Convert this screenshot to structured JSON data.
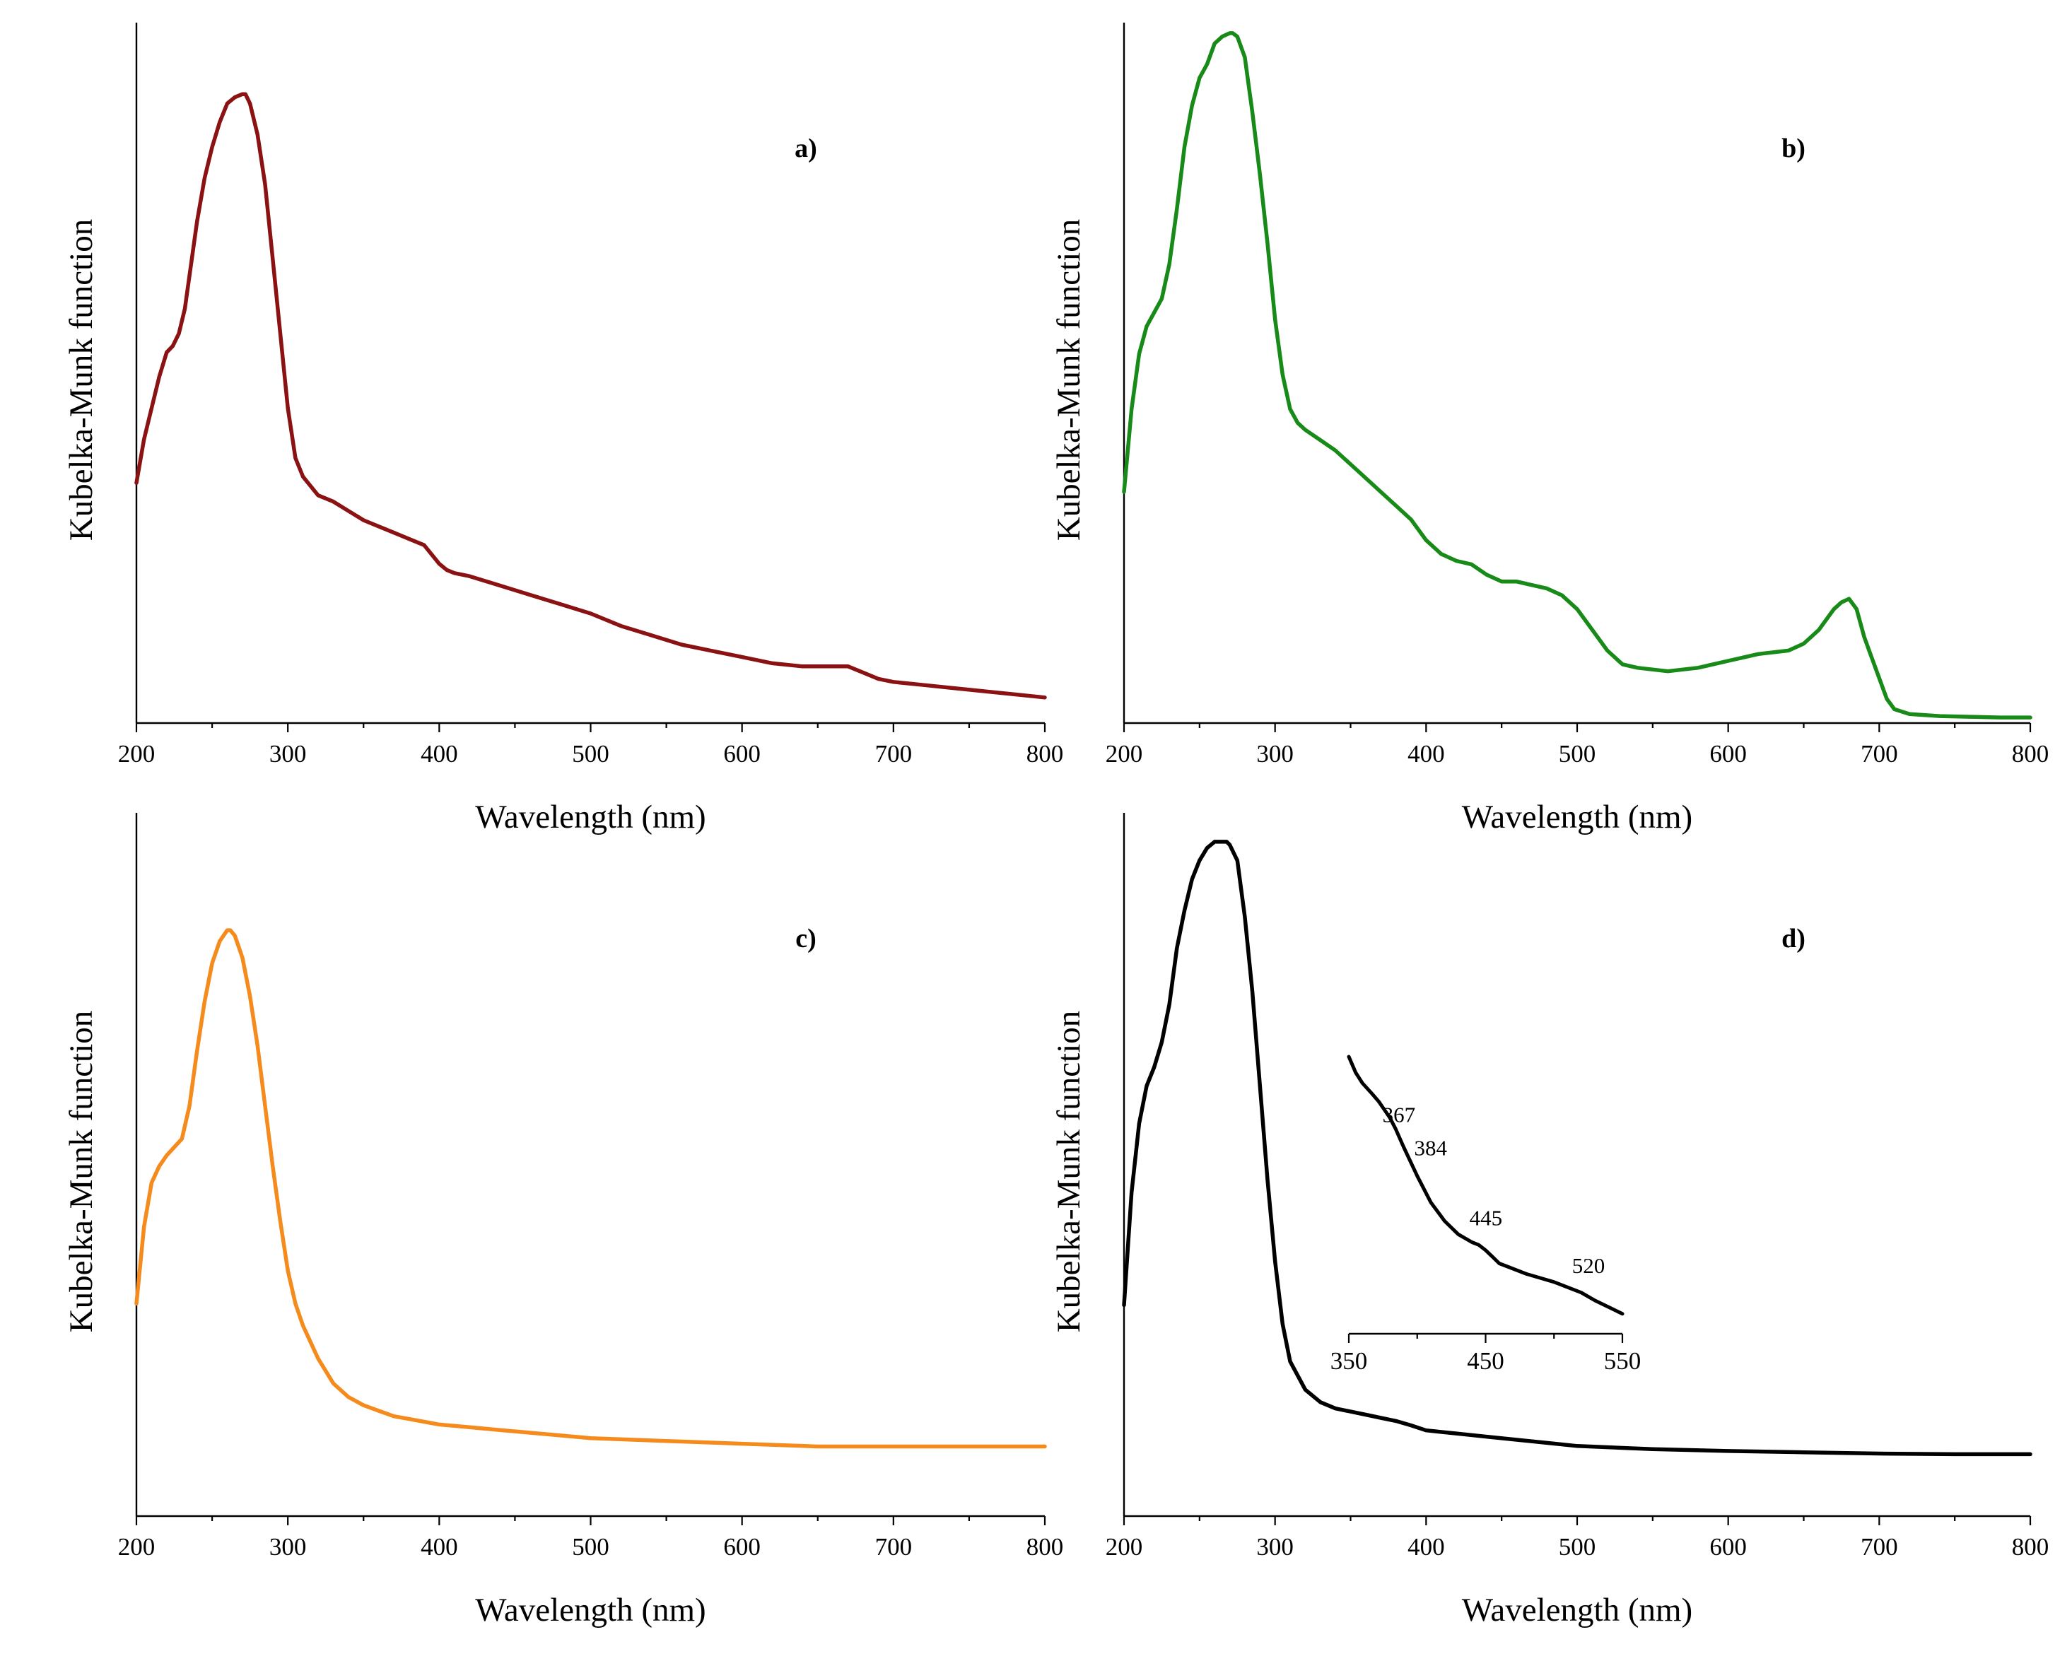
{
  "chart_data": [
    {
      "type": "line",
      "panel_label": "a)",
      "xlabel": "Wavelength (nm)",
      "ylabel": "Kubelka-Munk function",
      "xlim": [
        200,
        800
      ],
      "ylim": [
        0,
        1
      ],
      "xticks": [
        "200",
        "300",
        "400",
        "500",
        "600",
        "700",
        "800"
      ],
      "color": "#8b1212",
      "series": [
        {
          "name": "a",
          "x": [
            200,
            205,
            210,
            215,
            220,
            224,
            228,
            232,
            236,
            240,
            245,
            250,
            255,
            260,
            265,
            270,
            272,
            275,
            280,
            285,
            290,
            295,
            300,
            305,
            310,
            320,
            330,
            340,
            350,
            360,
            370,
            380,
            390,
            400,
            405,
            410,
            420,
            440,
            460,
            480,
            500,
            520,
            540,
            560,
            580,
            600,
            620,
            640,
            660,
            670,
            680,
            690,
            700,
            720,
            740,
            760,
            780,
            800
          ],
          "y": [
            0.36,
            0.43,
            0.48,
            0.53,
            0.57,
            0.58,
            0.6,
            0.64,
            0.71,
            0.78,
            0.85,
            0.9,
            0.94,
            0.97,
            0.98,
            0.985,
            0.985,
            0.97,
            0.92,
            0.84,
            0.72,
            0.6,
            0.48,
            0.4,
            0.37,
            0.34,
            0.33,
            0.315,
            0.3,
            0.29,
            0.28,
            0.27,
            0.26,
            0.23,
            0.22,
            0.215,
            0.21,
            0.195,
            0.18,
            0.165,
            0.15,
            0.13,
            0.115,
            0.1,
            0.09,
            0.08,
            0.07,
            0.065,
            0.065,
            0.065,
            0.055,
            0.045,
            0.04,
            0.035,
            0.03,
            0.025,
            0.02,
            0.015
          ]
        }
      ]
    },
    {
      "type": "line",
      "panel_label": "b)",
      "xlabel": "Wavelength (nm)",
      "ylabel": "Kubelka-Munk function",
      "xlim": [
        200,
        800
      ],
      "ylim": [
        0,
        1
      ],
      "xticks": [
        "200",
        "300",
        "400",
        "500",
        "600",
        "700",
        "800"
      ],
      "color": "#178a17",
      "series": [
        {
          "name": "b",
          "x": [
            200,
            205,
            210,
            215,
            220,
            225,
            230,
            235,
            240,
            245,
            250,
            255,
            260,
            265,
            270,
            272,
            275,
            280,
            285,
            290,
            295,
            300,
            305,
            310,
            315,
            320,
            330,
            340,
            350,
            360,
            370,
            380,
            390,
            400,
            410,
            420,
            430,
            440,
            450,
            460,
            480,
            490,
            500,
            510,
            520,
            530,
            540,
            560,
            580,
            600,
            610,
            620,
            640,
            650,
            660,
            670,
            675,
            680,
            685,
            690,
            695,
            700,
            705,
            710,
            720,
            740,
            760,
            780,
            800
          ],
          "y": [
            0.33,
            0.45,
            0.53,
            0.57,
            0.59,
            0.61,
            0.66,
            0.74,
            0.83,
            0.89,
            0.93,
            0.95,
            0.98,
            0.99,
            0.995,
            0.995,
            0.99,
            0.96,
            0.88,
            0.79,
            0.69,
            0.58,
            0.5,
            0.45,
            0.43,
            0.42,
            0.405,
            0.39,
            0.37,
            0.35,
            0.33,
            0.31,
            0.29,
            0.26,
            0.24,
            0.23,
            0.225,
            0.21,
            0.2,
            0.2,
            0.19,
            0.18,
            0.16,
            0.13,
            0.1,
            0.08,
            0.075,
            0.07,
            0.075,
            0.085,
            0.09,
            0.095,
            0.1,
            0.11,
            0.13,
            0.16,
            0.17,
            0.175,
            0.16,
            0.12,
            0.09,
            0.06,
            0.03,
            0.015,
            0.008,
            0.005,
            0.004,
            0.003,
            0.003
          ]
        }
      ]
    },
    {
      "type": "line",
      "panel_label": "c)",
      "xlabel": "Wavelength (nm)",
      "ylabel": "Kubelka-Munk function",
      "xlim": [
        200,
        800
      ],
      "ylim": [
        0,
        1
      ],
      "xticks": [
        "200",
        "300",
        "400",
        "500",
        "600",
        "700",
        "800"
      ],
      "color": "#f58b1c",
      "series": [
        {
          "name": "c",
          "x": [
            200,
            205,
            210,
            215,
            220,
            225,
            230,
            235,
            240,
            245,
            250,
            255,
            260,
            262,
            265,
            270,
            275,
            280,
            285,
            290,
            295,
            300,
            305,
            310,
            320,
            330,
            340,
            350,
            360,
            370,
            380,
            390,
            400,
            420,
            440,
            460,
            480,
            500,
            550,
            600,
            650,
            700,
            750,
            800
          ],
          "y": [
            0.28,
            0.42,
            0.5,
            0.53,
            0.55,
            0.565,
            0.58,
            0.64,
            0.74,
            0.83,
            0.9,
            0.94,
            0.96,
            0.96,
            0.95,
            0.91,
            0.84,
            0.75,
            0.64,
            0.53,
            0.43,
            0.34,
            0.28,
            0.24,
            0.18,
            0.135,
            0.11,
            0.095,
            0.085,
            0.075,
            0.07,
            0.065,
            0.06,
            0.055,
            0.05,
            0.045,
            0.04,
            0.035,
            0.03,
            0.025,
            0.02,
            0.02,
            0.02,
            0.02
          ]
        }
      ]
    },
    {
      "type": "line",
      "panel_label": "d)",
      "xlabel": "Wavelength (nm)",
      "ylabel": "Kubelka-Munk function",
      "xlim": [
        200,
        800
      ],
      "ylim": [
        0,
        1
      ],
      "xticks": [
        "200",
        "300",
        "400",
        "500",
        "600",
        "700",
        "800"
      ],
      "color": "#000000",
      "series": [
        {
          "name": "d",
          "x": [
            200,
            205,
            210,
            215,
            220,
            225,
            230,
            235,
            240,
            245,
            250,
            255,
            260,
            265,
            268,
            270,
            275,
            280,
            285,
            290,
            295,
            300,
            305,
            310,
            320,
            330,
            340,
            350,
            360,
            370,
            380,
            390,
            400,
            420,
            440,
            460,
            480,
            500,
            550,
            600,
            650,
            700,
            750,
            800
          ],
          "y": [
            0.25,
            0.43,
            0.54,
            0.6,
            0.63,
            0.67,
            0.73,
            0.82,
            0.88,
            0.93,
            0.96,
            0.98,
            0.99,
            0.99,
            0.99,
            0.985,
            0.96,
            0.87,
            0.75,
            0.6,
            0.45,
            0.32,
            0.22,
            0.16,
            0.115,
            0.095,
            0.085,
            0.08,
            0.075,
            0.07,
            0.065,
            0.058,
            0.05,
            0.045,
            0.04,
            0.035,
            0.03,
            0.025,
            0.02,
            0.017,
            0.015,
            0.013,
            0.012,
            0.012
          ]
        }
      ],
      "inset": {
        "xlim": [
          350,
          550
        ],
        "xticks": [
          "350",
          "450",
          "550"
        ],
        "x": [
          350,
          355,
          360,
          367,
          372,
          376,
          380,
          384,
          390,
          400,
          410,
          420,
          430,
          440,
          445,
          450,
          455,
          460,
          470,
          480,
          490,
          500,
          510,
          520,
          530,
          540,
          550
        ],
        "y": [
          1.0,
          0.94,
          0.9,
          0.86,
          0.83,
          0.8,
          0.77,
          0.73,
          0.66,
          0.55,
          0.45,
          0.38,
          0.33,
          0.3,
          0.29,
          0.27,
          0.245,
          0.22,
          0.2,
          0.18,
          0.165,
          0.15,
          0.13,
          0.11,
          0.08,
          0.055,
          0.03
        ],
        "annotations": [
          {
            "label": "367",
            "x": 367
          },
          {
            "label": "384",
            "x": 384
          },
          {
            "label": "445",
            "x": 445
          },
          {
            "label": "520",
            "x": 520
          }
        ]
      }
    }
  ]
}
